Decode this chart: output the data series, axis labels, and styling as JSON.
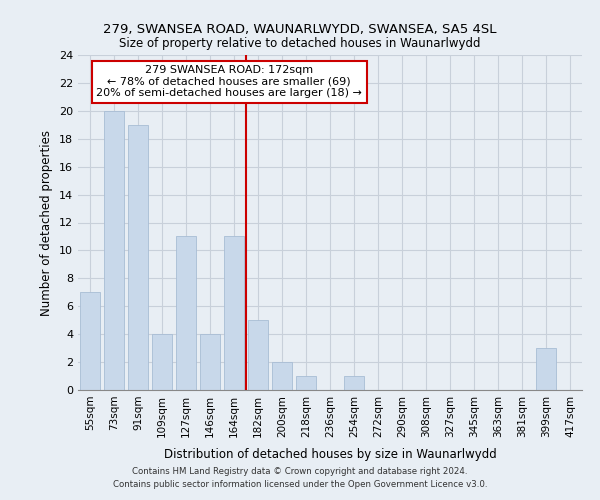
{
  "title": "279, SWANSEA ROAD, WAUNARLWYDD, SWANSEA, SA5 4SL",
  "subtitle": "Size of property relative to detached houses in Waunarlwydd",
  "xlabel": "Distribution of detached houses by size in Waunarlwydd",
  "ylabel": "Number of detached properties",
  "bar_labels": [
    "55sqm",
    "73sqm",
    "91sqm",
    "109sqm",
    "127sqm",
    "146sqm",
    "164sqm",
    "182sqm",
    "200sqm",
    "218sqm",
    "236sqm",
    "254sqm",
    "272sqm",
    "290sqm",
    "308sqm",
    "327sqm",
    "345sqm",
    "363sqm",
    "381sqm",
    "399sqm",
    "417sqm"
  ],
  "bar_values": [
    7,
    20,
    19,
    4,
    11,
    4,
    11,
    5,
    2,
    1,
    0,
    1,
    0,
    0,
    0,
    0,
    0,
    0,
    0,
    3,
    0
  ],
  "bar_color": "#c8d8ea",
  "bar_edge_color": "#a8bdd4",
  "reference_line_color": "#cc0000",
  "ylim": [
    0,
    24
  ],
  "yticks": [
    0,
    2,
    4,
    6,
    8,
    10,
    12,
    14,
    16,
    18,
    20,
    22,
    24
  ],
  "annotation_title": "279 SWANSEA ROAD: 172sqm",
  "annotation_line1": "← 78% of detached houses are smaller (69)",
  "annotation_line2": "20% of semi-detached houses are larger (18) →",
  "annotation_box_color": "#ffffff",
  "annotation_box_edge": "#cc0000",
  "footer_line1": "Contains HM Land Registry data © Crown copyright and database right 2024.",
  "footer_line2": "Contains public sector information licensed under the Open Government Licence v3.0.",
  "background_color": "#e8eef4",
  "plot_background": "#e8eef4",
  "grid_color": "#c8d0da"
}
